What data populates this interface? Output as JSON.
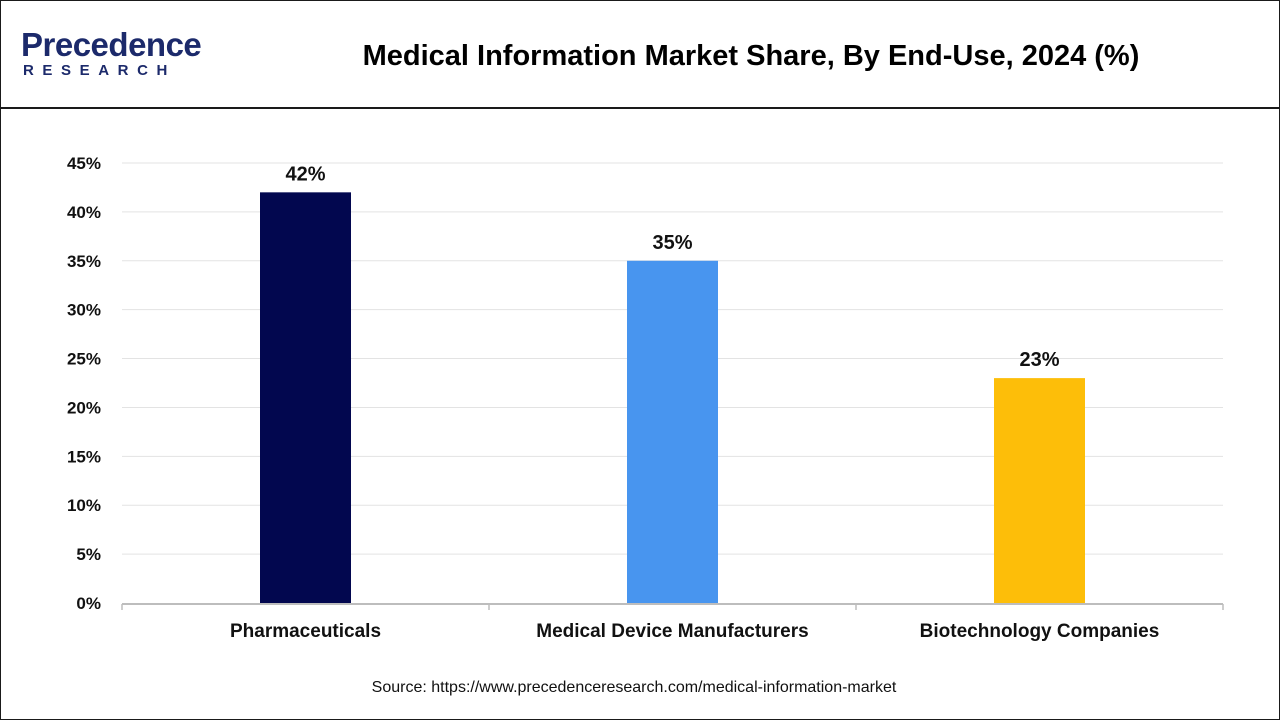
{
  "brand": {
    "name": "Precedence",
    "sub": "RESEARCH"
  },
  "title": "Medical Information Market Share, By End-Use, 2024 (%)",
  "source": "Source: https://www.precedenceresearch.com/medical-information-market",
  "colors": {
    "brand": "#1c2a6b",
    "grid": "#e3e3e3",
    "axis": "#bdbdbd"
  },
  "chart_data": {
    "type": "bar",
    "title": "Medical Information Market Share, By End-Use, 2024 (%)",
    "categories": [
      "Pharmaceuticals",
      "Medical Device Manufacturers",
      "Biotechnology Companies"
    ],
    "values": [
      42,
      35,
      23
    ],
    "data_labels": [
      "42%",
      "35%",
      "23%"
    ],
    "bar_colors": [
      "#02074f",
      "#4895ef",
      "#fdbe09"
    ],
    "y_ticks": [
      "0%",
      "5%",
      "10%",
      "15%",
      "20%",
      "25%",
      "30%",
      "35%",
      "40%",
      "45%"
    ],
    "ylim": [
      0,
      45
    ],
    "xlabel": "",
    "ylabel": "",
    "grid": true,
    "legend": "none"
  }
}
